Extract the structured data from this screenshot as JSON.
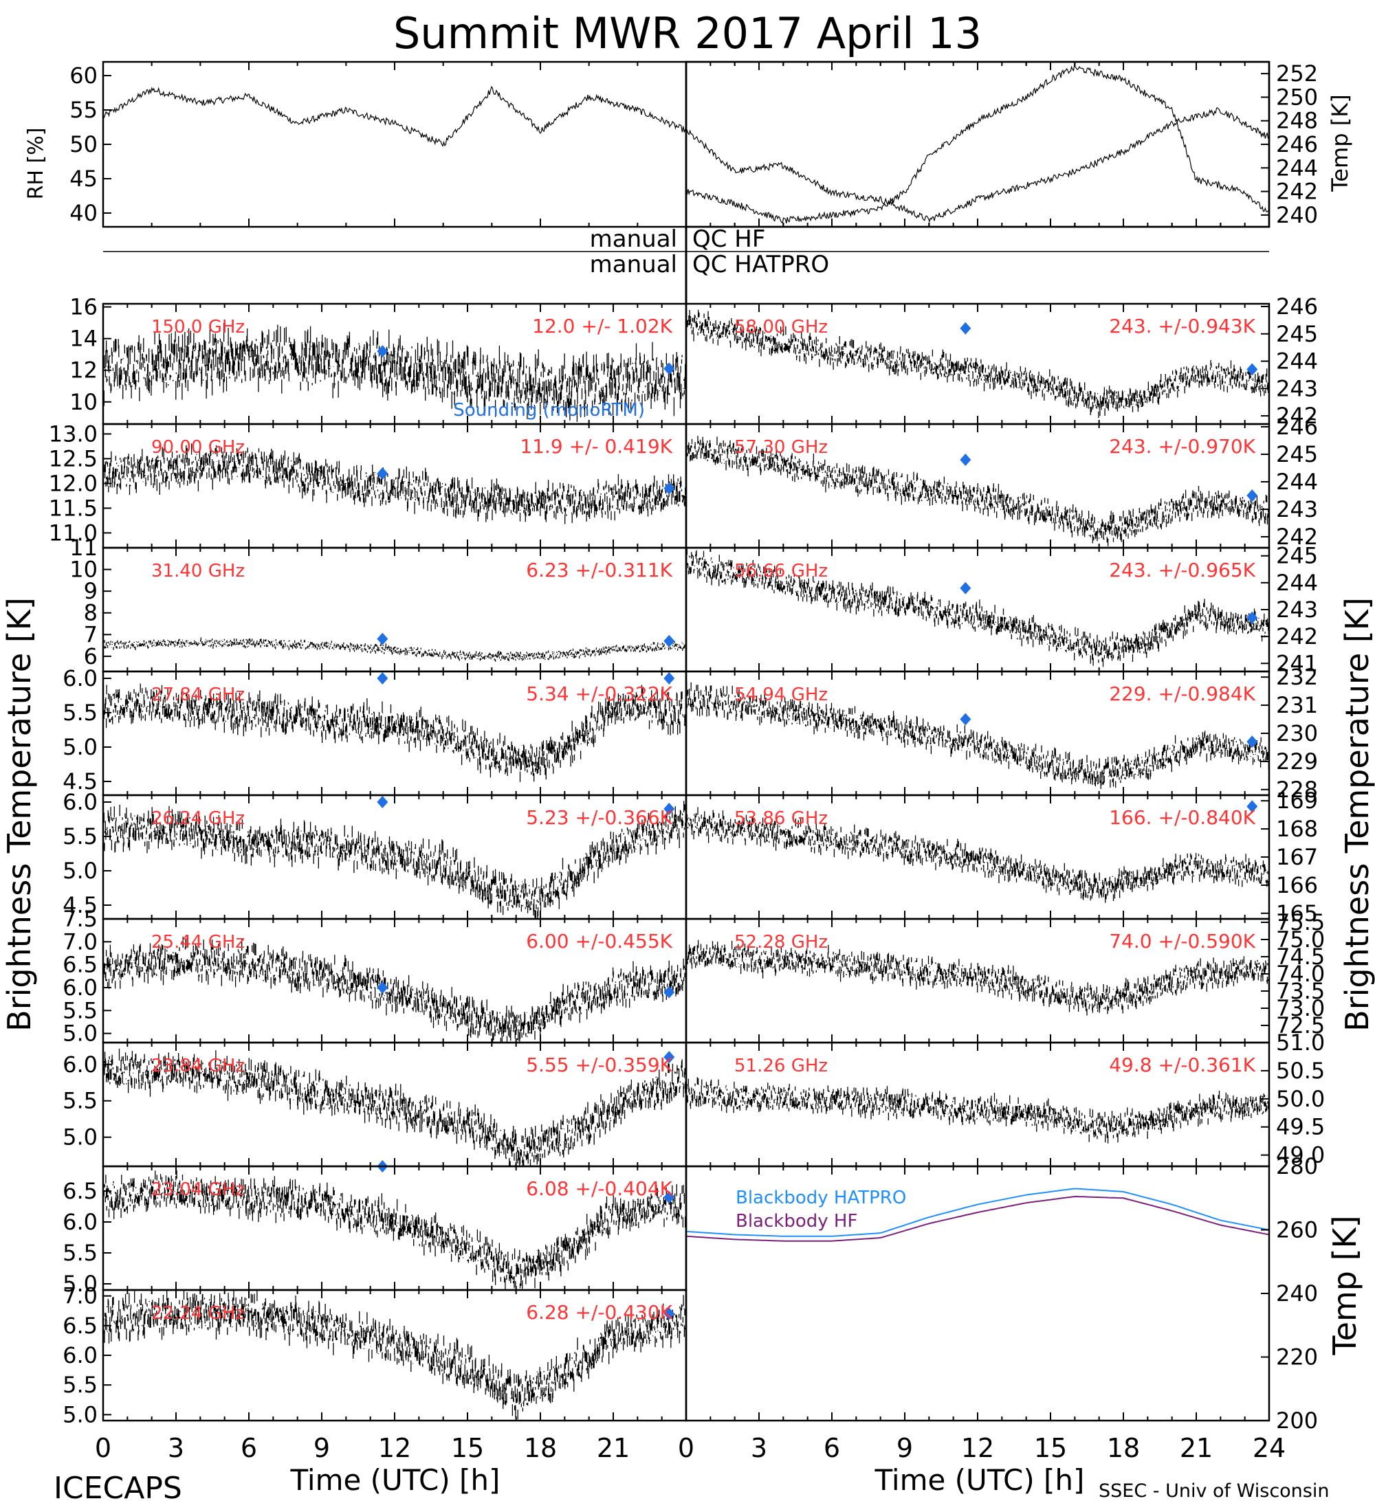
{
  "title": "Summit MWR 2017 April 13",
  "footer": {
    "left": "ICECAPS",
    "right": "SSEC - Univ of Wisconsin"
  },
  "qc_labels": {
    "manual_1": "manual",
    "qc_1": "QC HF",
    "manual_2": "manual",
    "qc_2": "QC HATPRO"
  },
  "axis_labels": {
    "bt_left": "Brightness Temperature [K]",
    "bt_right": "Brightness Temperature [K]",
    "rh": "RH [%]",
    "temp_top": "Temp [K]",
    "temp_bottom": "Temp [K]",
    "x_left": "Time (UTC) [h]",
    "x_right": "Time (UTC) [h]"
  },
  "colors": {
    "data": "#000000",
    "annotation": "#ff3333",
    "sounding": "#1f6fe5",
    "blackbody_hatpro": "#1f8fff",
    "blackbody_hf": "#7b1f7b"
  },
  "chart_data": [
    {
      "type": "line",
      "id": "rh",
      "ylabel": "RH [%]",
      "xlim": [
        0,
        12
      ],
      "ylim": [
        38,
        62
      ],
      "yticks": [
        40,
        45,
        50,
        55,
        60
      ],
      "x": [
        0,
        1,
        2,
        3,
        4,
        5,
        6,
        7,
        8,
        9,
        10,
        11,
        12
      ],
      "y": [
        54,
        58,
        56,
        57,
        53,
        55,
        53,
        50,
        58,
        52,
        57,
        55,
        52
      ]
    },
    {
      "type": "line",
      "id": "rh_right",
      "xlim": [
        12,
        24
      ],
      "ylim": [
        38,
        62
      ],
      "x": [
        12,
        13,
        14,
        15,
        16,
        17,
        18,
        19,
        20,
        21,
        22,
        23,
        24
      ],
      "y": [
        52,
        46,
        47,
        43,
        42,
        39,
        42,
        44,
        46,
        49,
        53,
        55,
        51
      ]
    },
    {
      "type": "line",
      "id": "temp_top",
      "ylabel": "Temp [K]",
      "xlim": [
        0,
        24
      ],
      "ylim": [
        239,
        253
      ],
      "yticks": [
        240,
        242,
        244,
        246,
        248,
        250,
        252
      ],
      "x": [
        0,
        2,
        4,
        6,
        8,
        9,
        10,
        12,
        14,
        15,
        16,
        18,
        20,
        21,
        22,
        23,
        24
      ],
      "y": [
        242,
        241,
        239.5,
        240,
        240.5,
        242,
        245,
        248,
        250,
        251.5,
        252.5,
        251.5,
        249,
        243,
        242.5,
        242,
        240
      ]
    },
    {
      "type": "scatter",
      "id": "ch_150",
      "label": "150.0 GHz",
      "stat": "12.0 +/-  1.02K",
      "ylim": [
        8.6,
        16.2
      ],
      "yticks": [
        10,
        12,
        14,
        16
      ],
      "x": [
        0,
        3,
        6,
        9,
        12,
        15,
        18,
        21,
        24
      ],
      "y": [
        12.0,
        12.5,
        12.6,
        12.5,
        12.4,
        11.5,
        11.0,
        11.2,
        11.6
      ],
      "sounding": [
        {
          "x": 11.5,
          "y": 13.2
        },
        {
          "x": 23.3,
          "y": 12.1
        }
      ],
      "sounding_label": "Sounding (monoRTM)"
    },
    {
      "type": "scatter",
      "id": "ch_90",
      "label": "90.00 GHz",
      "stat": "11.9 +/- 0.419K",
      "ylim": [
        10.7,
        13.2
      ],
      "yticks": [
        11.0,
        11.5,
        12.0,
        12.5,
        13.0
      ],
      "x": [
        0,
        3,
        6,
        9,
        12,
        15,
        18,
        21,
        24
      ],
      "y": [
        12.2,
        12.3,
        12.4,
        12.1,
        11.9,
        11.7,
        11.6,
        11.7,
        11.8
      ],
      "sounding": [
        {
          "x": 11.5,
          "y": 12.2
        },
        {
          "x": 23.3,
          "y": 11.9
        }
      ]
    },
    {
      "type": "scatter",
      "id": "ch_3140",
      "label": "31.40 GHz",
      "stat": "6.23 +/-0.311K",
      "ylim": [
        5.3,
        11
      ],
      "yticks": [
        6,
        7,
        8,
        9,
        10,
        11
      ],
      "x": [
        0,
        3,
        6,
        9,
        12,
        15,
        18,
        21,
        24
      ],
      "y": [
        6.5,
        6.6,
        6.6,
        6.5,
        6.3,
        6.0,
        6.0,
        6.3,
        6.5
      ],
      "sounding": [
        {
          "x": 11.5,
          "y": 6.8
        },
        {
          "x": 23.3,
          "y": 6.7
        }
      ]
    },
    {
      "type": "scatter",
      "id": "ch_2784",
      "label": "27.84 GHz",
      "stat": "5.34 +/-0.322K",
      "ylim": [
        4.3,
        6.1
      ],
      "yticks": [
        4.5,
        5.0,
        5.5,
        6.0
      ],
      "x": [
        0,
        3,
        6,
        9,
        12,
        14,
        16,
        18,
        20,
        21,
        24
      ],
      "y": [
        5.6,
        5.6,
        5.5,
        5.4,
        5.3,
        5.2,
        4.9,
        4.8,
        5.2,
        5.6,
        5.5
      ],
      "sounding": [
        {
          "x": 11.5,
          "y": 6.0
        },
        {
          "x": 23.3,
          "y": 6.0
        }
      ]
    },
    {
      "type": "scatter",
      "id": "ch_2624",
      "label": "26.24 GHz",
      "stat": "5.23 +/-0.366K",
      "ylim": [
        4.3,
        6.1
      ],
      "yticks": [
        4.5,
        5.0,
        5.5,
        6.0
      ],
      "x": [
        0,
        3,
        6,
        9,
        12,
        14,
        16,
        18,
        20,
        22,
        24
      ],
      "y": [
        5.6,
        5.6,
        5.4,
        5.4,
        5.2,
        5.1,
        4.7,
        4.6,
        5.1,
        5.5,
        5.7
      ],
      "sounding": [
        {
          "x": 11.5,
          "y": 6.0
        },
        {
          "x": 23.3,
          "y": 5.9
        }
      ]
    },
    {
      "type": "scatter",
      "id": "ch_2544",
      "label": "25.44 GHz",
      "stat": "6.00 +/-0.455K",
      "ylim": [
        4.8,
        7.5
      ],
      "yticks": [
        5.0,
        5.5,
        6.0,
        6.5,
        7.0,
        7.5
      ],
      "x": [
        0,
        3,
        6,
        9,
        12,
        15,
        17,
        19,
        21,
        24
      ],
      "y": [
        6.4,
        6.6,
        6.5,
        6.3,
        5.9,
        5.4,
        5.1,
        5.6,
        6.0,
        6.2
      ],
      "sounding": [
        {
          "x": 11.5,
          "y": 6.0
        },
        {
          "x": 23.3,
          "y": 5.9
        }
      ]
    },
    {
      "type": "scatter",
      "id": "ch_2384",
      "label": "23.84 GHz",
      "stat": "5.55 +/-0.359K",
      "ylim": [
        4.6,
        6.3
      ],
      "yticks": [
        5.0,
        5.5,
        6.0
      ],
      "x": [
        0,
        3,
        6,
        9,
        12,
        15,
        17,
        19,
        21,
        24
      ],
      "y": [
        5.9,
        5.9,
        5.8,
        5.6,
        5.4,
        5.2,
        4.8,
        5.0,
        5.4,
        5.8
      ],
      "sounding": [
        {
          "x": 23.3,
          "y": 6.1
        }
      ]
    },
    {
      "type": "scatter",
      "id": "ch_2304",
      "label": "23.04 GHz",
      "stat": "6.08 +/-0.404K",
      "ylim": [
        4.9,
        6.9
      ],
      "yticks": [
        5.0,
        5.5,
        6.0,
        6.5
      ],
      "x": [
        0,
        3,
        6,
        9,
        12,
        15,
        17,
        19,
        21,
        24
      ],
      "y": [
        6.4,
        6.5,
        6.4,
        6.3,
        6.0,
        5.6,
        5.2,
        5.5,
        6.1,
        6.3
      ],
      "sounding": [
        {
          "x": 11.5,
          "y": 6.9
        },
        {
          "x": 23.3,
          "y": 6.4
        }
      ]
    },
    {
      "type": "scatter",
      "id": "ch_2224",
      "label": "22.24 GHz",
      "stat": "6.28 +/-0.430K",
      "ylim": [
        4.9,
        7.1
      ],
      "yticks": [
        5.0,
        5.5,
        6.0,
        6.5,
        7.0
      ],
      "x": [
        0,
        3,
        6,
        9,
        12,
        15,
        17,
        19,
        21,
        24
      ],
      "y": [
        6.6,
        6.7,
        6.7,
        6.5,
        6.2,
        5.8,
        5.3,
        5.7,
        6.3,
        6.6
      ],
      "sounding": [
        {
          "x": 23.3,
          "y": 6.7
        }
      ]
    },
    {
      "type": "scatter",
      "id": "ch_5800",
      "label": "58.00 GHz",
      "stat": "243. +/-0.943K",
      "ylim": [
        241.7,
        246.1
      ],
      "yticks": [
        242,
        243,
        244,
        245,
        246
      ],
      "x": [
        0,
        3,
        6,
        9,
        12,
        15,
        17,
        19,
        21,
        24
      ],
      "y": [
        245.4,
        244.8,
        244.3,
        244.0,
        243.6,
        243.1,
        242.5,
        242.7,
        243.6,
        243.2
      ],
      "sounding": [
        {
          "x": 11.5,
          "y": 245.2
        },
        {
          "x": 23.3,
          "y": 243.7
        }
      ]
    },
    {
      "type": "scatter",
      "id": "ch_5730",
      "label": "57.30 GHz",
      "stat": "243. +/-0.970K",
      "ylim": [
        241.6,
        246.1
      ],
      "yticks": [
        242,
        243,
        244,
        245,
        246
      ],
      "x": [
        0,
        3,
        6,
        9,
        12,
        15,
        17,
        19,
        21,
        24
      ],
      "y": [
        245.2,
        244.8,
        244.2,
        243.8,
        243.4,
        242.9,
        242.2,
        242.6,
        243.3,
        242.9
      ],
      "sounding": [
        {
          "x": 11.5,
          "y": 244.8
        },
        {
          "x": 23.3,
          "y": 243.5
        }
      ]
    },
    {
      "type": "scatter",
      "id": "ch_5666",
      "label": "56.66 GHz",
      "stat": "243. +/-0.965K",
      "ylim": [
        240.7,
        245.3
      ],
      "yticks": [
        241,
        242,
        243,
        244,
        245
      ],
      "x": [
        0,
        3,
        6,
        9,
        12,
        15,
        17,
        19,
        21,
        24
      ],
      "y": [
        244.7,
        244.2,
        243.6,
        243.2,
        242.7,
        242.0,
        241.5,
        241.8,
        242.8,
        242.3
      ],
      "sounding": [
        {
          "x": 11.5,
          "y": 243.8
        },
        {
          "x": 23.3,
          "y": 242.7
        }
      ]
    },
    {
      "type": "scatter",
      "id": "ch_5494",
      "label": "54.94 GHz",
      "stat": "229. +/-0.984K",
      "ylim": [
        227.8,
        232.2
      ],
      "yticks": [
        228,
        229,
        230,
        231,
        232
      ],
      "x": [
        0,
        3,
        6,
        9,
        12,
        15,
        17,
        19,
        21,
        24
      ],
      "y": [
        231.3,
        230.9,
        230.5,
        230.1,
        229.6,
        228.9,
        228.5,
        228.9,
        229.6,
        229.3
      ],
      "sounding": [
        {
          "x": 11.5,
          "y": 230.5
        },
        {
          "x": 23.3,
          "y": 229.7
        }
      ]
    },
    {
      "type": "scatter",
      "id": "ch_5386",
      "label": "53.86 GHz",
      "stat": "166. +/-0.840K",
      "ylim": [
        164.8,
        169.2
      ],
      "yticks": [
        165,
        166,
        167,
        168,
        169
      ],
      "x": [
        0,
        3,
        6,
        9,
        12,
        15,
        17,
        19,
        21,
        24
      ],
      "y": [
        168.2,
        167.9,
        167.6,
        167.3,
        166.9,
        166.3,
        165.9,
        166.3,
        166.7,
        166.4
      ],
      "sounding": [
        {
          "x": 23.3,
          "y": 168.8
        }
      ]
    },
    {
      "type": "scatter",
      "id": "ch_5228",
      "label": "52.28 GHz",
      "stat": "74.0 +/-0.590K",
      "ylim": [
        72.0,
        75.6
      ],
      "yticks": [
        "72.5",
        "73.0",
        "73.5",
        "74.0",
        "74.5",
        "75.0",
        "75.5"
      ],
      "tick_labels_shown": [
        "72.5",
        "73.0",
        "73.5",
        "74.0",
        "74.5",
        "75.0",
        "75.5"
      ],
      "x": [
        0,
        3,
        6,
        9,
        12,
        15,
        17,
        19,
        21,
        24
      ],
      "y": [
        74.6,
        74.4,
        74.3,
        74.1,
        73.9,
        73.5,
        73.2,
        73.5,
        74.0,
        74.1
      ]
    },
    {
      "type": "scatter",
      "id": "ch_5126",
      "label": "51.26 GHz",
      "stat": "49.8 +/-0.361K",
      "ylim": [
        48.8,
        51.0
      ],
      "yticks": [
        49.0,
        49.5,
        50.0,
        50.5,
        51.0
      ],
      "x": [
        0,
        3,
        6,
        9,
        12,
        15,
        17,
        19,
        21,
        24
      ],
      "y": [
        50.1,
        50.0,
        50.0,
        49.9,
        49.8,
        49.7,
        49.5,
        49.6,
        49.8,
        49.9
      ]
    },
    {
      "type": "line",
      "id": "blackbody",
      "ylabel": "Temp [K]",
      "xlim": [
        0,
        24
      ],
      "ylim": [
        200,
        280
      ],
      "yticks": [
        200,
        220,
        240,
        260,
        280
      ],
      "series": [
        {
          "name": "Blackbody HATPRO",
          "x": [
            0,
            2,
            4,
            6,
            8,
            10,
            12,
            14,
            16,
            18,
            20,
            22,
            24
          ],
          "y": [
            259.5,
            258.5,
            258,
            258,
            259,
            264,
            268,
            271,
            273,
            272,
            268,
            263,
            260
          ]
        },
        {
          "name": "Blackbody HF",
          "x": [
            0,
            2,
            4,
            6,
            8,
            10,
            12,
            14,
            16,
            18,
            20,
            22,
            24
          ],
          "y": [
            258,
            257,
            256.5,
            256.5,
            257.5,
            262,
            265.5,
            268.5,
            270.5,
            270,
            266,
            261.5,
            258.5
          ]
        }
      ]
    }
  ]
}
